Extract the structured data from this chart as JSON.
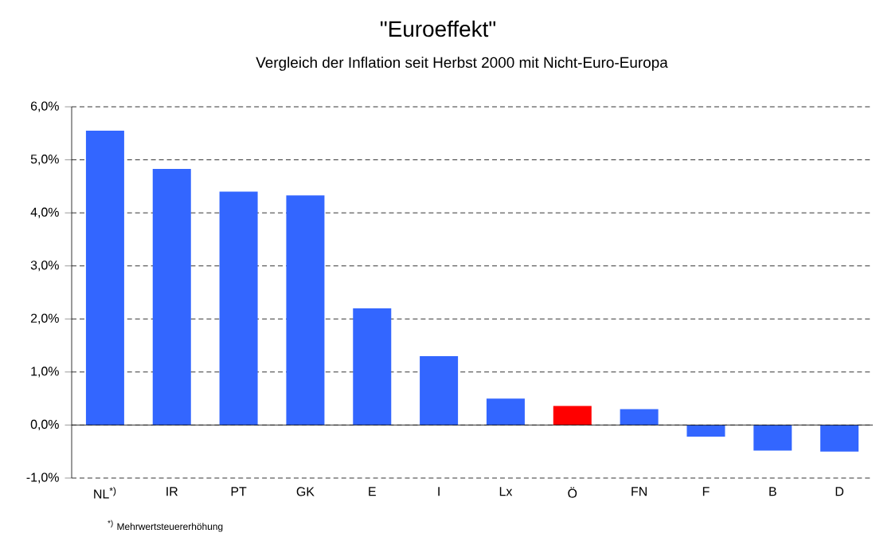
{
  "chart_data": {
    "type": "bar",
    "title": "\"Euroeffekt\"",
    "subtitle": "Vergleich der Inflation seit Herbst 2000 mit Nicht-Euro-Europa",
    "categories": [
      "NL$^{*)}$",
      "IR",
      "PT",
      "GK",
      "E",
      "I",
      "Lx",
      "Ö",
      "FN",
      "F",
      "B",
      "D"
    ],
    "values": [
      5.55,
      4.83,
      4.4,
      4.33,
      2.2,
      1.3,
      0.5,
      0.36,
      0.3,
      -0.22,
      -0.48,
      -0.5
    ],
    "colors": [
      "#3366ff",
      "#3366ff",
      "#3366ff",
      "#3366ff",
      "#3366ff",
      "#3366ff",
      "#3366ff",
      "#ff0000",
      "#3366ff",
      "#3366ff",
      "#3366ff",
      "#3366ff"
    ],
    "ylim": [
      -1,
      6
    ],
    "yticks": [
      {
        "value": -1,
        "label": "-1,0%"
      },
      {
        "value": 0,
        "label": "0,0%"
      },
      {
        "value": 1,
        "label": "1,0%"
      },
      {
        "value": 2,
        "label": "2,0%"
      },
      {
        "value": 3,
        "label": "3,0%"
      },
      {
        "value": 4,
        "label": "4,0%"
      },
      {
        "value": 5,
        "label": "5,0%"
      },
      {
        "value": 6,
        "label": "6,0%"
      }
    ],
    "grid": "y",
    "annotations": [
      "$^{*)}$ Mehrwertsteuererhöhung"
    ]
  }
}
